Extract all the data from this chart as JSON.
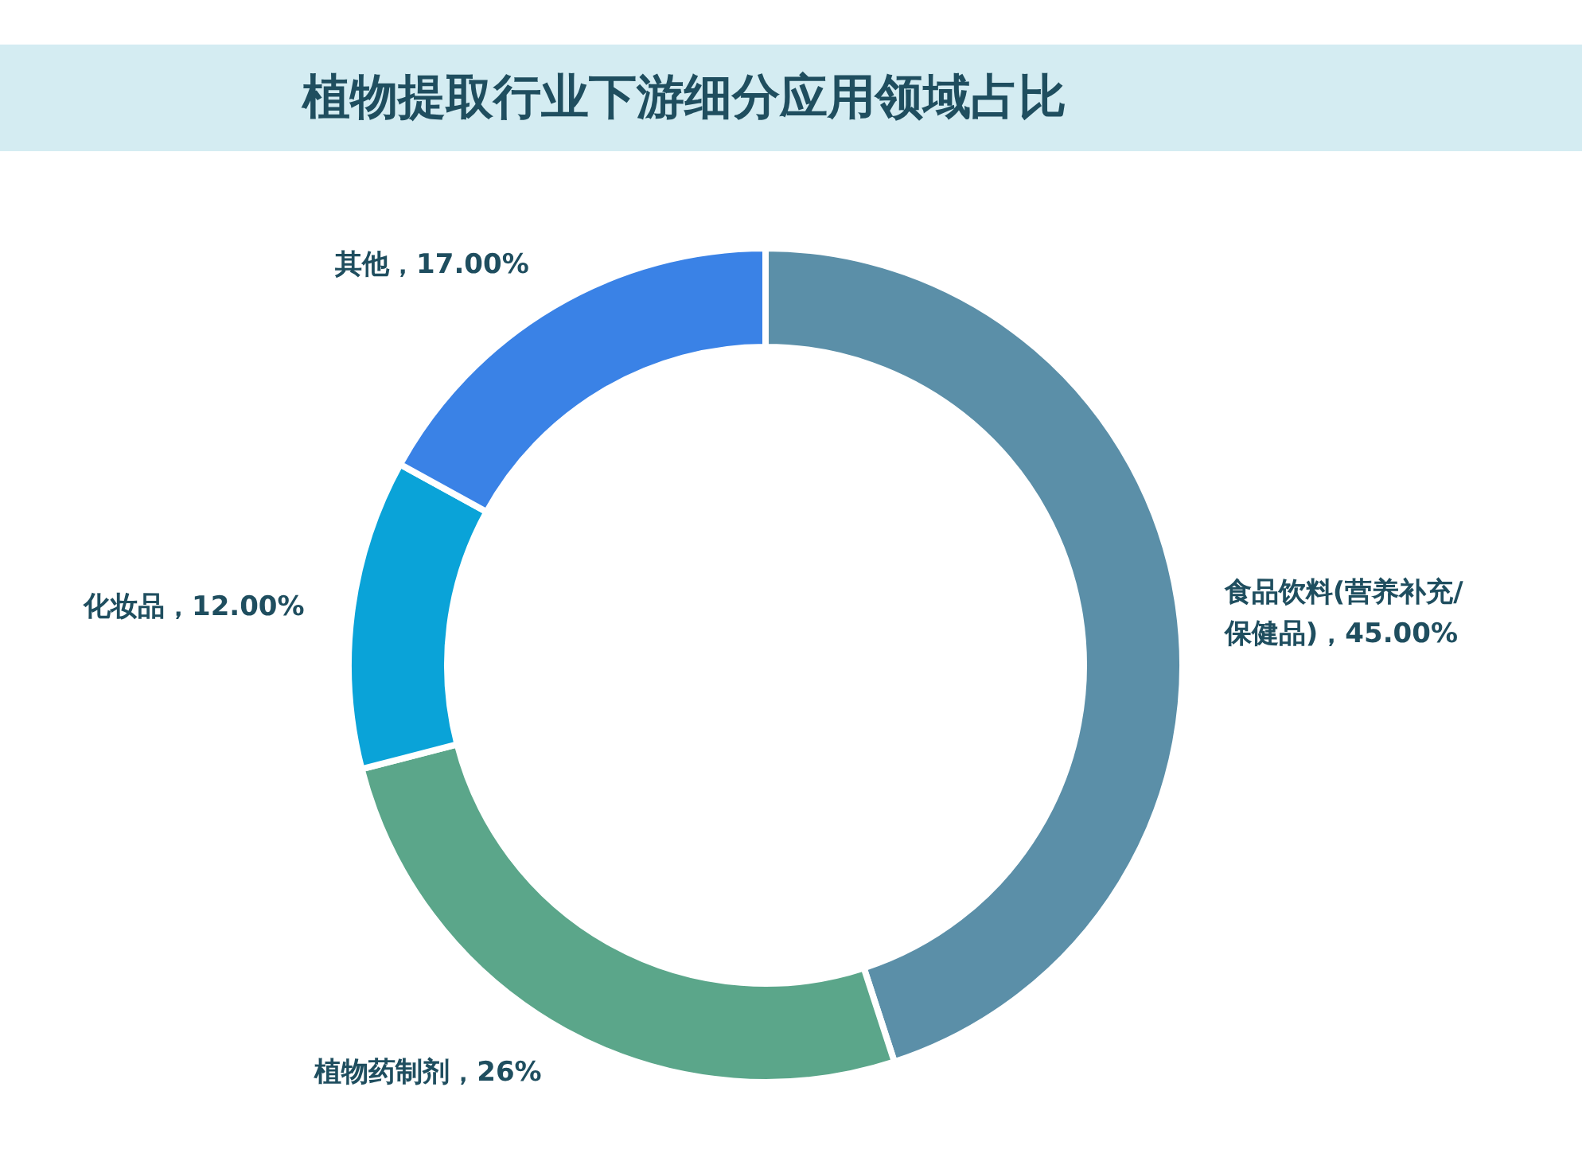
{
  "chart_data": {
    "type": "donut",
    "title": "植物提取行业下游细分应用领域占比",
    "categories": [
      "食品饮料(营养补充/\n保健品)",
      "植物药制剂",
      "化妆品",
      "其他"
    ],
    "values": [
      45,
      26,
      12,
      17
    ],
    "value_labels": [
      "45.00%",
      "26%",
      "12.00%",
      "17.00%"
    ],
    "colors": [
      "#5b8fa8",
      "#5ba68a",
      "#0aa3d8",
      "#3a82e6"
    ]
  }
}
